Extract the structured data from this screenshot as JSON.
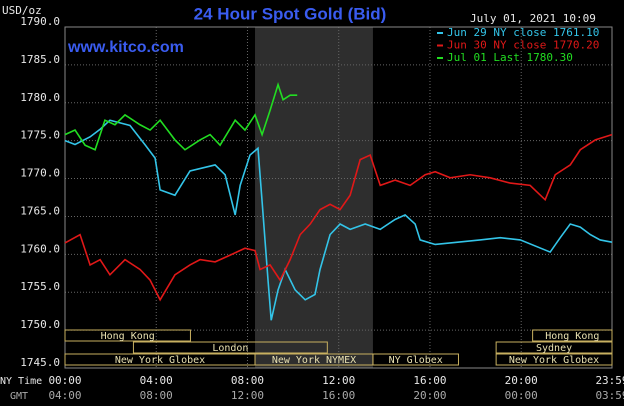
{
  "chart_data": {
    "type": "line",
    "title": "24 Hour Spot Gold (Bid)",
    "unit_label": "USD/oz",
    "site": "www.kitco.com",
    "timestamp": "July 01, 2021 10:09",
    "x_row_label": "NY Time",
    "gmt_row_label": "GMT",
    "xlim": [
      0,
      23.98
    ],
    "xticks": [
      {
        "value": 0,
        "label": "00:00"
      },
      {
        "value": 4,
        "label": "04:00"
      },
      {
        "value": 8,
        "label": "08:00"
      },
      {
        "value": 12,
        "label": "12:00"
      },
      {
        "value": 16,
        "label": "16:00"
      },
      {
        "value": 20,
        "label": "20:00"
      },
      {
        "value": 23.98,
        "label": "23:59"
      }
    ],
    "gmt_ticks": [
      "04:00",
      "08:00",
      "12:00",
      "16:00",
      "20:00",
      "00:00",
      "03:59"
    ],
    "ylim": [
      1745,
      1790
    ],
    "yticks": [
      {
        "value": 1745,
        "label": "1745.0"
      },
      {
        "value": 1750,
        "label": "1750.0"
      },
      {
        "value": 1755,
        "label": "1755.0"
      },
      {
        "value": 1760,
        "label": "1760.0"
      },
      {
        "value": 1765,
        "label": "1765.0"
      },
      {
        "value": 1770,
        "label": "1770.0"
      },
      {
        "value": 1775,
        "label": "1775.0"
      },
      {
        "value": 1780,
        "label": "1780.0"
      },
      {
        "value": 1785,
        "label": "1785.0"
      },
      {
        "value": 1790,
        "label": "1790.0"
      }
    ],
    "grid": true,
    "series": [
      {
        "name": "Jun 29 NY close 1761.10",
        "color": "#33c4e8",
        "x": [
          0,
          0.44,
          1.1,
          1.54,
          1.97,
          2.85,
          3.5,
          3.95,
          4.17,
          4.82,
          5.48,
          6.58,
          7.02,
          7.46,
          7.68,
          8.11,
          8.46,
          8.64,
          8.9,
          9.04,
          9.34,
          9.65,
          10.09,
          10.53,
          10.96,
          11.18,
          11.62,
          12.06,
          12.5,
          13.16,
          13.82,
          14.47,
          14.91,
          15.35,
          15.57,
          16.23,
          16.89,
          18.2,
          19.08,
          19.96,
          21.27,
          21.71,
          22.15,
          22.59,
          23.03,
          23.46,
          23.98
        ],
        "values": [
          1775.0,
          1774.5,
          1775.5,
          1776.5,
          1777.7,
          1777.0,
          1774.5,
          1772.7,
          1768.5,
          1767.8,
          1771.0,
          1771.8,
          1770.5,
          1765.2,
          1769.1,
          1773.1,
          1774.0,
          1767.0,
          1756.6,
          1751.3,
          1755.3,
          1758.0,
          1755.3,
          1754.0,
          1754.7,
          1758.0,
          1762.6,
          1764.0,
          1763.3,
          1764.0,
          1763.3,
          1764.6,
          1765.2,
          1764.0,
          1761.9,
          1761.3,
          1761.5,
          1761.9,
          1762.2,
          1761.9,
          1760.3,
          1762.2,
          1764.0,
          1763.6,
          1762.6,
          1761.9,
          1761.6
        ]
      },
      {
        "name": "Jun 30 NY close 1770.20",
        "color": "#e01818",
        "x": [
          0,
          0.66,
          1.1,
          1.54,
          1.97,
          2.63,
          3.29,
          3.73,
          4.17,
          4.82,
          5.48,
          5.92,
          6.58,
          7.24,
          7.89,
          8.33,
          8.55,
          8.99,
          9.43,
          9.87,
          10.31,
          10.75,
          11.18,
          11.62,
          12.06,
          12.5,
          12.94,
          13.38,
          13.82,
          14.47,
          15.13,
          15.79,
          16.23,
          16.89,
          17.76,
          18.64,
          19.52,
          20.39,
          21.05,
          21.49,
          22.15,
          22.59,
          23.25,
          23.98
        ],
        "values": [
          1761.5,
          1762.6,
          1758.6,
          1759.3,
          1757.3,
          1759.3,
          1758.0,
          1756.6,
          1754.0,
          1757.3,
          1758.6,
          1759.3,
          1759.0,
          1759.9,
          1760.8,
          1760.5,
          1758.0,
          1758.6,
          1756.6,
          1759.3,
          1762.6,
          1764.0,
          1765.9,
          1766.6,
          1765.9,
          1767.8,
          1772.5,
          1773.1,
          1769.1,
          1769.8,
          1769.1,
          1770.5,
          1770.9,
          1770.1,
          1770.5,
          1770.1,
          1769.4,
          1769.1,
          1767.2,
          1770.5,
          1771.8,
          1773.8,
          1775.1,
          1775.8
        ]
      },
      {
        "name": "Jul 01 Last 1780.30",
        "color": "#22dd22",
        "x": [
          0,
          0.44,
          0.88,
          1.32,
          1.75,
          2.19,
          2.63,
          3.29,
          3.73,
          4.17,
          4.82,
          5.26,
          5.92,
          6.36,
          6.8,
          7.46,
          7.89,
          8.33,
          8.64,
          8.99,
          9.34,
          9.56,
          9.87,
          10.18
        ],
        "values": [
          1775.8,
          1776.4,
          1774.4,
          1773.8,
          1777.7,
          1777.1,
          1778.4,
          1777.1,
          1776.4,
          1777.7,
          1775.1,
          1773.8,
          1775.1,
          1775.8,
          1774.4,
          1777.7,
          1776.4,
          1778.4,
          1775.8,
          1779.0,
          1782.4,
          1780.4,
          1781.0,
          1781.0
        ]
      }
    ],
    "session_rows": [
      [
        {
          "name": "Hong Kong",
          "start": 0,
          "end": 5.5
        },
        {
          "name": "Hong Kong",
          "start": 20.5,
          "end": 23.98
        }
      ],
      [
        {
          "name": "London",
          "start": 3,
          "end": 11.5
        },
        {
          "name": "Sydney",
          "start": 18.9,
          "end": 23.98
        }
      ],
      [
        {
          "name": "New York Globex",
          "start": 0,
          "end": 8.33
        },
        {
          "name": "New York NYMEX",
          "start": 8.33,
          "end": 13.5
        },
        {
          "name": "NY Globex",
          "start": 13.5,
          "end": 17.25
        },
        {
          "name": "New York Globex",
          "start": 18.9,
          "end": 23.98
        }
      ]
    ]
  }
}
